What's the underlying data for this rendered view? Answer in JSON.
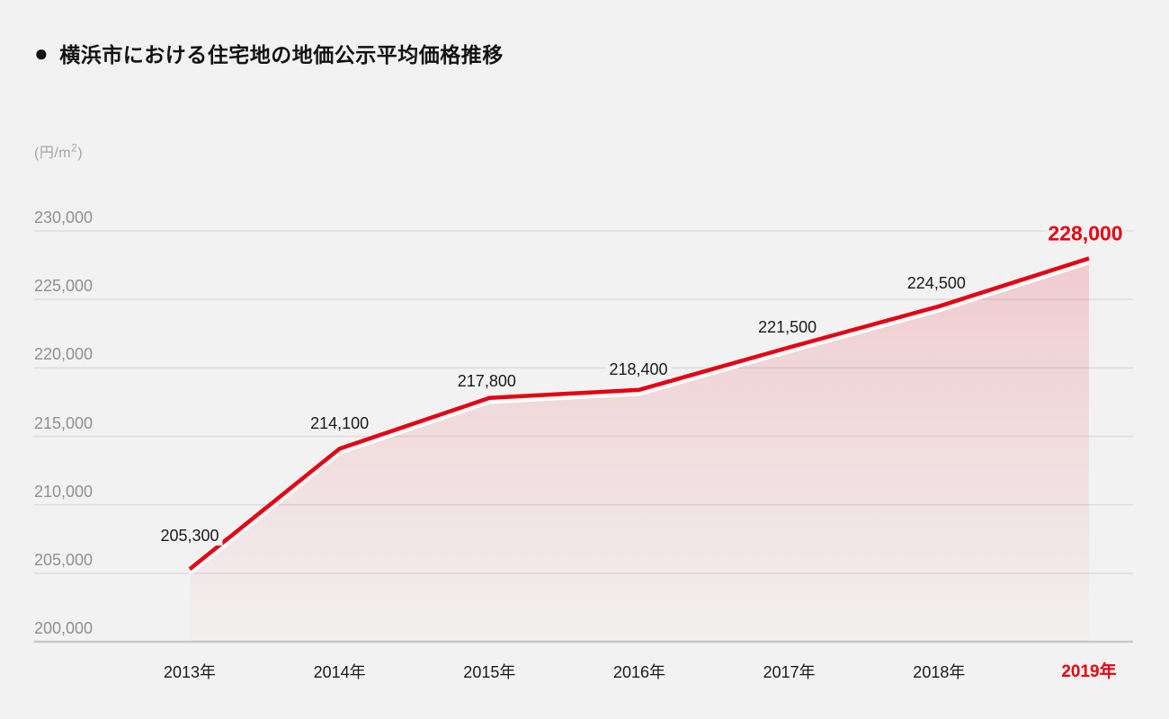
{
  "page": {
    "background": "#f2f2f2"
  },
  "header": {
    "bullet": "●",
    "title": "横浜市における住宅地の地価公示平均価格推移"
  },
  "y_axis": {
    "unit_prefix": "(円/m",
    "unit_sup": "2",
    "unit_suffix": ")"
  },
  "chart_data": {
    "type": "area",
    "title": "横浜市における住宅地の地価公示平均価格推移",
    "ylabel": "(円/m²)",
    "categories": [
      "2013年",
      "2014年",
      "2015年",
      "2016年",
      "2017年",
      "2018年",
      "2019年"
    ],
    "values": [
      205300,
      214100,
      217800,
      218400,
      221500,
      224500,
      228000
    ],
    "value_labels": [
      "205,300",
      "214,100",
      "217,800",
      "218,400",
      "221,500",
      "224,500",
      "228,000"
    ],
    "highlight_index": 6,
    "ylim": [
      200000,
      230000
    ],
    "ytick_step": 5000,
    "ytick_labels": [
      "230,000",
      "225,000",
      "220,000",
      "215,000",
      "210,000",
      "205,000",
      "200,000"
    ],
    "grid": true,
    "legend": null,
    "colors": {
      "background": "#f2f2f2",
      "line": "#e60012",
      "line_shadow": "#ffffff",
      "fill_top": "rgba(230,0,18,0.17)",
      "fill_bottom": "rgba(230,0,18,0.01)",
      "grid": "#dcdcdc",
      "baseline": "#c7c7c7",
      "ytick_text": "#909090",
      "xtick_text": "#1a1a1a",
      "value_text": "#1a1a1a",
      "highlight": "#e60012"
    }
  }
}
